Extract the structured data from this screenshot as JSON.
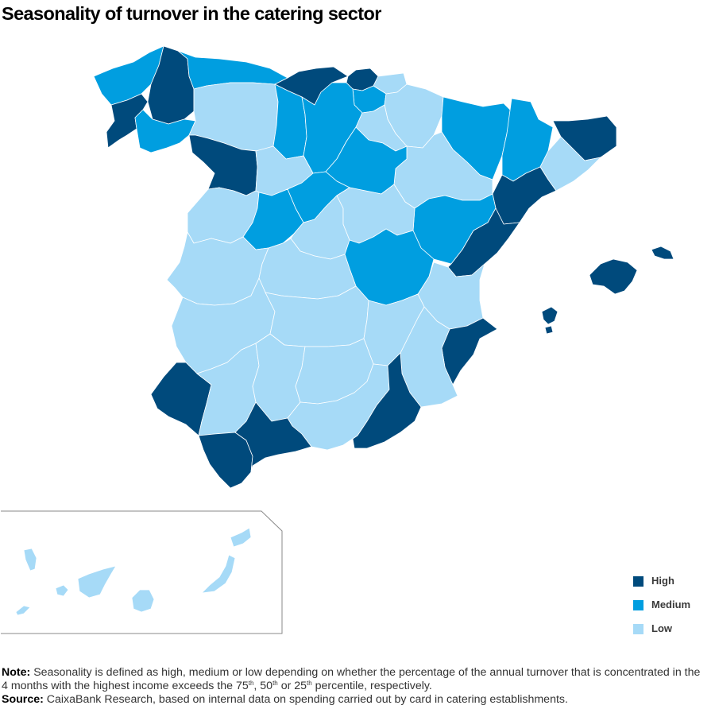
{
  "title": "Seasonality of turnover in the catering sector",
  "legend": [
    {
      "label": "High",
      "color": "#004a7c"
    },
    {
      "label": "Medium",
      "color": "#009ee0"
    },
    {
      "label": "Low",
      "color": "#a6daf7"
    }
  ],
  "note": {
    "label": "Note:",
    "part1": " Seasonality is defined as high, medium or low depending on whether the percentage of the annual turnover that is concentrated in the 4 months with the highest income exceeds the 75",
    "sup1": "th",
    "part2": ", 50",
    "sup2": "th",
    "part3": " or 25",
    "sup3": "th",
    "part4": " percentile, respectively."
  },
  "source": {
    "label": "Source:",
    "text": " CaixaBank Research, based on internal data on spending carried out by card in catering establishments."
  },
  "regions": [
    {
      "name": "A Coruña",
      "level": "Medium"
    },
    {
      "name": "Lugo",
      "level": "High"
    },
    {
      "name": "Pontevedra",
      "level": "High"
    },
    {
      "name": "Ourense",
      "level": "Medium"
    },
    {
      "name": "Asturias",
      "level": "Medium"
    },
    {
      "name": "Cantabria",
      "level": "High"
    },
    {
      "name": "Bizkaia",
      "level": "High"
    },
    {
      "name": "Gipuzkoa",
      "level": "Low"
    },
    {
      "name": "Araba",
      "level": "Medium"
    },
    {
      "name": "Navarra",
      "level": "Low"
    },
    {
      "name": "Huesca",
      "level": "Medium"
    },
    {
      "name": "Lleida",
      "level": "Medium"
    },
    {
      "name": "Girona",
      "level": "High"
    },
    {
      "name": "Barcelona",
      "level": "Low"
    },
    {
      "name": "Tarragona",
      "level": "High"
    },
    {
      "name": "Zaragoza",
      "level": "Low"
    },
    {
      "name": "Teruel",
      "level": "Medium"
    },
    {
      "name": "Castellón",
      "level": "High"
    },
    {
      "name": "Valencia",
      "level": "Low"
    },
    {
      "name": "Alicante",
      "level": "High"
    },
    {
      "name": "Murcia",
      "level": "Low"
    },
    {
      "name": "León",
      "level": "Low"
    },
    {
      "name": "Palencia",
      "level": "Medium"
    },
    {
      "name": "Burgos",
      "level": "Medium"
    },
    {
      "name": "La Rioja",
      "level": "Low"
    },
    {
      "name": "Soria",
      "level": "Medium"
    },
    {
      "name": "Zamora",
      "level": "High"
    },
    {
      "name": "Valladolid",
      "level": "Low"
    },
    {
      "name": "Segovia",
      "level": "Medium"
    },
    {
      "name": "Salamanca",
      "level": "Low"
    },
    {
      "name": "Ávila",
      "level": "Medium"
    },
    {
      "name": "Madrid",
      "level": "Low"
    },
    {
      "name": "Guadalajara",
      "level": "Low"
    },
    {
      "name": "Cuenca",
      "level": "Medium"
    },
    {
      "name": "Cáceres",
      "level": "Low"
    },
    {
      "name": "Toledo",
      "level": "Low"
    },
    {
      "name": "Badajoz",
      "level": "Low"
    },
    {
      "name": "Ciudad Real",
      "level": "Low"
    },
    {
      "name": "Albacete",
      "level": "Low"
    },
    {
      "name": "Huelva",
      "level": "High"
    },
    {
      "name": "Sevilla",
      "level": "Low"
    },
    {
      "name": "Córdoba",
      "level": "Low"
    },
    {
      "name": "Jaén",
      "level": "Low"
    },
    {
      "name": "Granada",
      "level": "Low"
    },
    {
      "name": "Almería",
      "level": "High"
    },
    {
      "name": "Cádiz",
      "level": "High"
    },
    {
      "name": "Málaga",
      "level": "High"
    },
    {
      "name": "Mallorca",
      "level": "High"
    },
    {
      "name": "Menorca",
      "level": "High"
    },
    {
      "name": "Ibiza",
      "level": "High"
    },
    {
      "name": "Canary Islands",
      "level": "Low"
    }
  ]
}
